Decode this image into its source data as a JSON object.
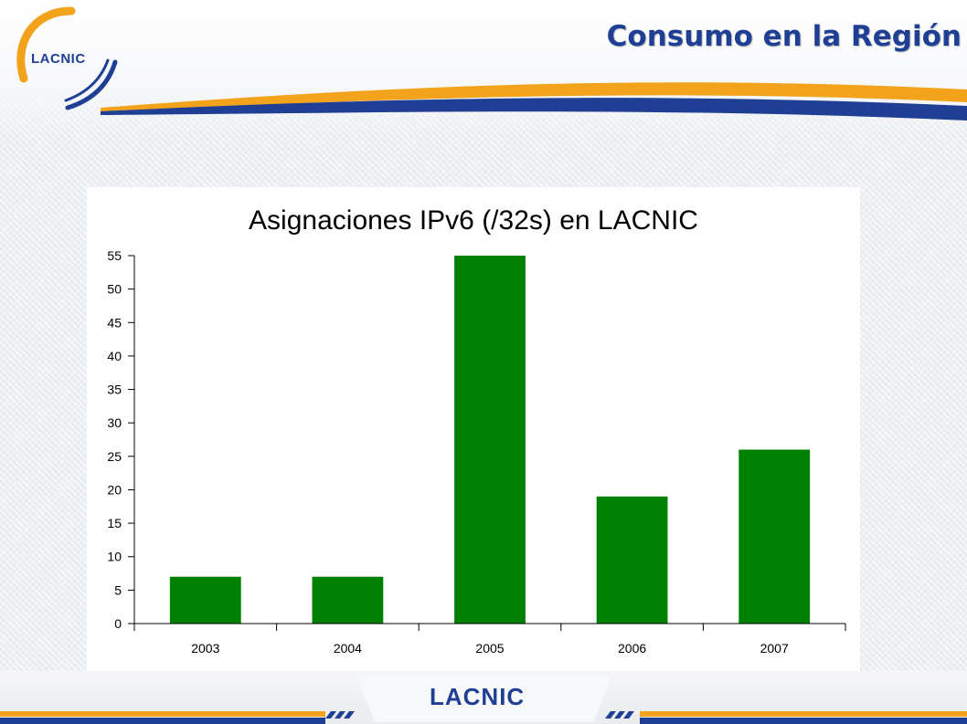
{
  "header": {
    "title": "Consumo en la Región",
    "logo_text": "LACNIC"
  },
  "footer": {
    "logo_text": "LACNIC"
  },
  "colors": {
    "brand_blue": "#1f3f95",
    "brand_orange": "#f2a31b",
    "bar_green": "#008000"
  },
  "chart_data": {
    "type": "bar",
    "title": "Asignaciones IPv6 (/32s) en LACNIC",
    "xlabel": "",
    "ylabel": "",
    "categories": [
      "2003",
      "2004",
      "2005",
      "2006",
      "2007"
    ],
    "values": [
      7,
      7,
      55,
      19,
      26
    ],
    "ylim": [
      0,
      55
    ],
    "yticks": [
      0,
      5,
      10,
      15,
      20,
      25,
      30,
      35,
      40,
      45,
      50,
      55
    ],
    "grid": false,
    "legend": "none"
  }
}
